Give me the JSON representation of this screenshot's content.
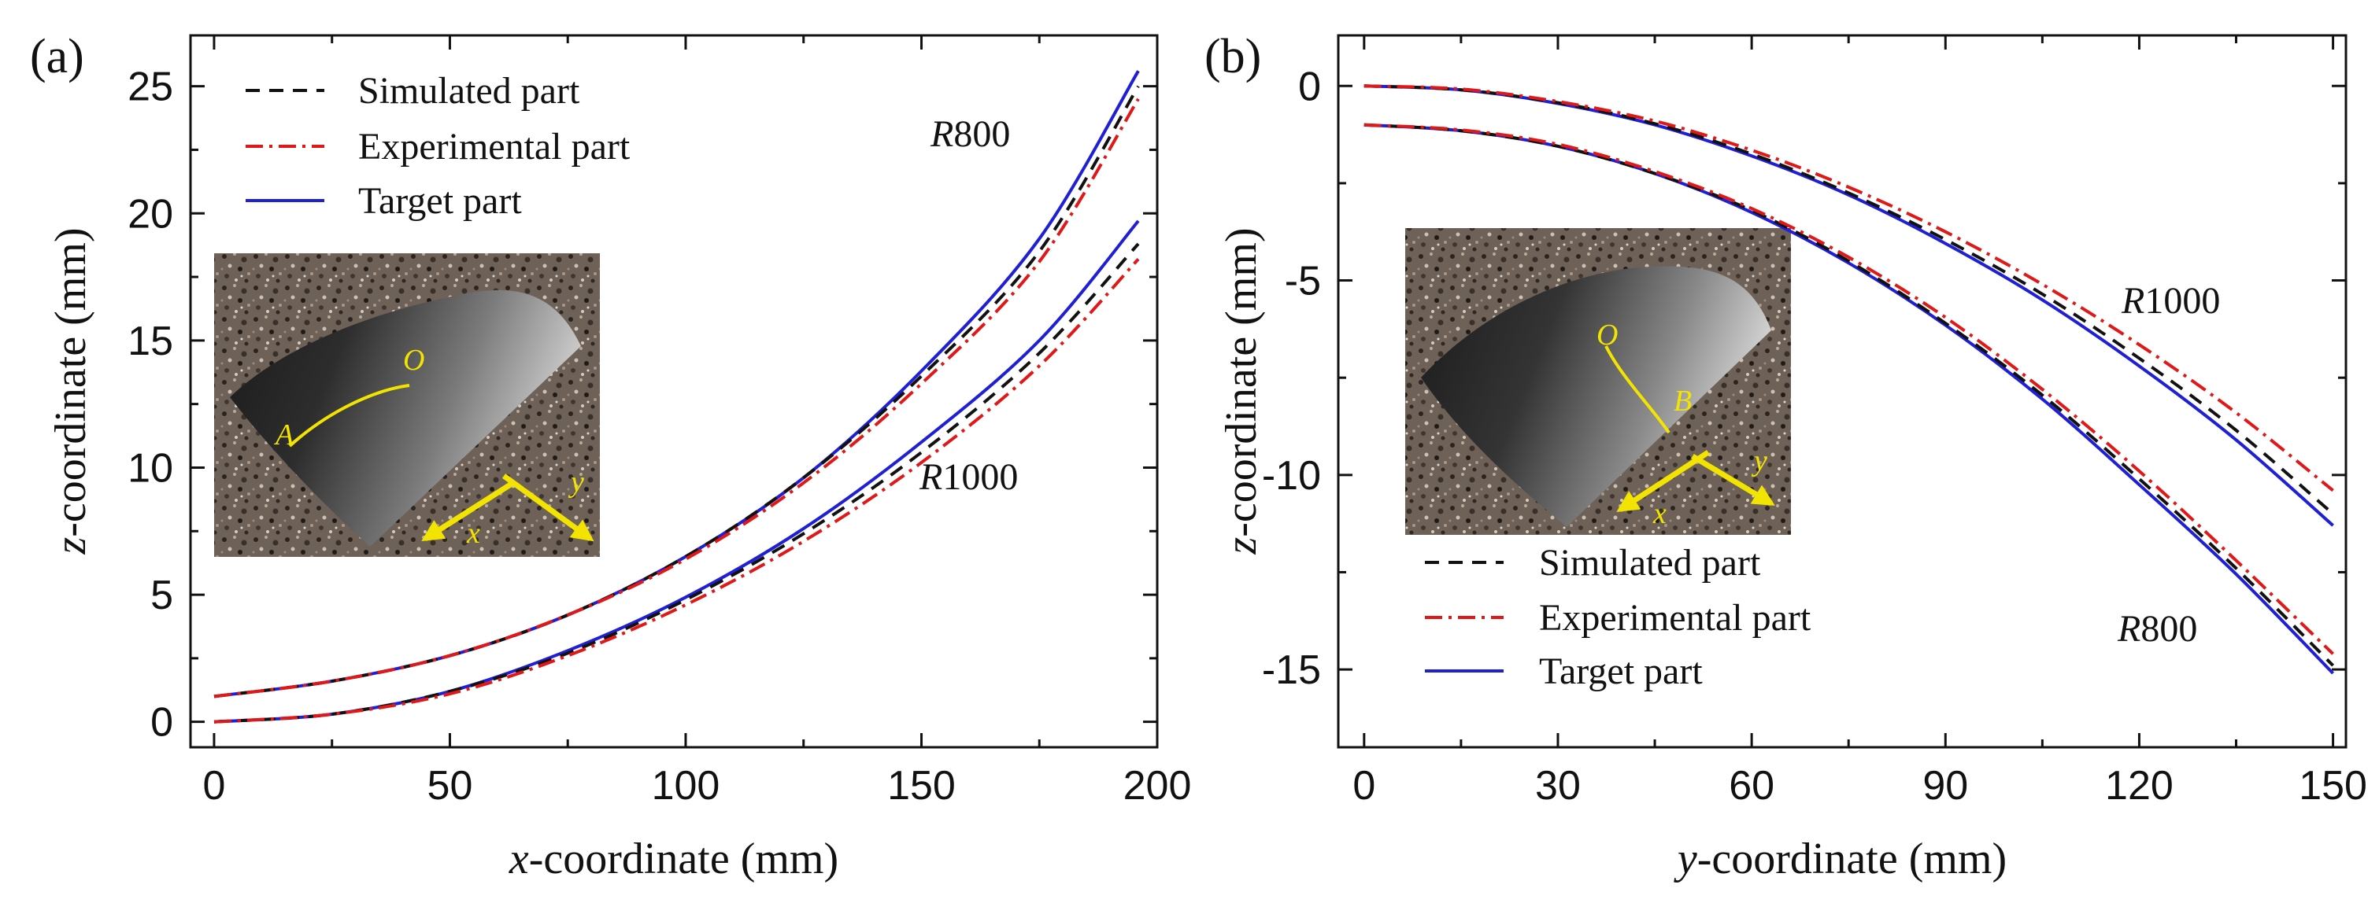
{
  "chart_data": [
    {
      "panel": "(a)",
      "type": "line",
      "xlabel_var": "x",
      "xlabel_rest": "-coordinate (mm)",
      "ylabel_var": "z",
      "ylabel_rest": "-coordinate (mm)",
      "xlim": [
        -5,
        200
      ],
      "ylim": [
        -1,
        27
      ],
      "xticks": [
        0,
        50,
        100,
        150,
        200
      ],
      "yticks": [
        0,
        5,
        10,
        15,
        20,
        25
      ],
      "legend": [
        "Simulated part",
        "Experimental part",
        "Target part"
      ],
      "series": [
        {
          "name": "Target part",
          "group": "R800",
          "style": "solid",
          "color": "#1f1fd6",
          "x": [
            0,
            25,
            50,
            75,
            100,
            125,
            150,
            175,
            196
          ],
          "y": [
            1.0,
            1.6,
            2.6,
            4.2,
            6.5,
            9.6,
            13.8,
            19.0,
            25.6
          ]
        },
        {
          "name": "Simulated part",
          "group": "R800",
          "style": "dashed",
          "color": "#111111",
          "x": [
            0,
            25,
            50,
            75,
            100,
            125,
            150,
            175,
            196
          ],
          "y": [
            1.0,
            1.6,
            2.6,
            4.2,
            6.5,
            9.6,
            13.6,
            18.5,
            25.0
          ]
        },
        {
          "name": "Experimental part",
          "group": "R800",
          "style": "dashdot",
          "color": "#e01818",
          "x": [
            0,
            25,
            50,
            75,
            100,
            125,
            150,
            175,
            196
          ],
          "y": [
            1.0,
            1.6,
            2.6,
            4.2,
            6.4,
            9.4,
            13.3,
            18.1,
            24.5
          ]
        },
        {
          "name": "Target part",
          "group": "R1000",
          "style": "solid",
          "color": "#1f1fd6",
          "x": [
            0,
            25,
            50,
            75,
            100,
            125,
            150,
            175,
            196
          ],
          "y": [
            0.0,
            0.3,
            1.2,
            2.8,
            4.9,
            7.6,
            11.0,
            15.0,
            19.7
          ]
        },
        {
          "name": "Simulated part",
          "group": "R1000",
          "style": "dashed",
          "color": "#111111",
          "x": [
            0,
            25,
            50,
            75,
            100,
            125,
            150,
            175,
            196
          ],
          "y": [
            0.0,
            0.3,
            1.2,
            2.7,
            4.8,
            7.4,
            10.6,
            14.5,
            18.8
          ]
        },
        {
          "name": "Experimental part",
          "group": "R1000",
          "style": "dashdot",
          "color": "#e01818",
          "x": [
            0,
            25,
            50,
            75,
            100,
            125,
            150,
            175,
            196
          ],
          "y": [
            0.0,
            0.3,
            1.1,
            2.6,
            4.6,
            7.1,
            10.2,
            14.0,
            18.2
          ]
        }
      ],
      "annotations": [
        {
          "var": "R",
          "text": "800"
        },
        {
          "var": "R",
          "text": "1000"
        }
      ],
      "inset": {
        "point_start": "A",
        "point_end": "O",
        "axis_1": "x",
        "axis_2": "y"
      }
    },
    {
      "panel": "(b)",
      "type": "line",
      "xlabel_var": "y",
      "xlabel_rest": "-coordinate (mm)",
      "ylabel_var": "z",
      "ylabel_rest": "-coordinate (mm)",
      "xlim": [
        -4,
        152
      ],
      "ylim": [
        -17,
        1.3
      ],
      "xticks": [
        0,
        30,
        60,
        90,
        120,
        150
      ],
      "yticks": [
        0,
        -5,
        -10,
        -15
      ],
      "legend": [
        "Simulated part",
        "Experimental part",
        "Target part"
      ],
      "series": [
        {
          "name": "Target part",
          "group": "R1000",
          "style": "solid",
          "color": "#1f1fd6",
          "x": [
            0,
            15,
            30,
            45,
            60,
            75,
            90,
            105,
            120,
            135,
            150
          ],
          "y": [
            0.0,
            -0.1,
            -0.45,
            -1.0,
            -1.8,
            -2.8,
            -4.05,
            -5.5,
            -7.2,
            -9.1,
            -11.3
          ]
        },
        {
          "name": "Simulated part",
          "group": "R1000",
          "style": "dashed",
          "color": "#111111",
          "x": [
            0,
            15,
            30,
            45,
            60,
            75,
            90,
            105,
            120,
            135,
            150
          ],
          "y": [
            0.0,
            -0.1,
            -0.43,
            -0.97,
            -1.75,
            -2.75,
            -3.95,
            -5.35,
            -7.0,
            -8.85,
            -11.0
          ]
        },
        {
          "name": "Experimental part",
          "group": "R1000",
          "style": "dashdot",
          "color": "#e01818",
          "x": [
            0,
            15,
            30,
            45,
            60,
            75,
            90,
            105,
            120,
            135,
            150
          ],
          "y": [
            0.0,
            -0.08,
            -0.4,
            -0.9,
            -1.65,
            -2.6,
            -3.75,
            -5.1,
            -6.65,
            -8.4,
            -10.4
          ]
        },
        {
          "name": "Target part",
          "group": "R800",
          "style": "solid",
          "color": "#1f1fd6",
          "x": [
            0,
            15,
            30,
            45,
            60,
            75,
            90,
            105,
            120,
            135,
            150
          ],
          "y": [
            -1.0,
            -1.15,
            -1.55,
            -2.25,
            -3.25,
            -4.55,
            -6.15,
            -8.05,
            -10.25,
            -12.55,
            -15.1
          ]
        },
        {
          "name": "Simulated part",
          "group": "R800",
          "style": "dashed",
          "color": "#111111",
          "x": [
            0,
            15,
            30,
            45,
            60,
            75,
            90,
            105,
            120,
            135,
            150
          ],
          "y": [
            -1.0,
            -1.15,
            -1.55,
            -2.25,
            -3.2,
            -4.5,
            -6.1,
            -7.95,
            -10.1,
            -12.4,
            -14.9
          ]
        },
        {
          "name": "Experimental part",
          "group": "R800",
          "style": "dashdot",
          "color": "#e01818",
          "x": [
            0,
            15,
            30,
            45,
            60,
            75,
            90,
            105,
            120,
            135,
            150
          ],
          "y": [
            -1.0,
            -1.13,
            -1.5,
            -2.2,
            -3.15,
            -4.4,
            -5.95,
            -7.8,
            -9.9,
            -12.2,
            -14.6
          ]
        }
      ],
      "annotations": [
        {
          "var": "R",
          "text": "1000"
        },
        {
          "var": "R",
          "text": "800"
        }
      ],
      "inset": {
        "point_start": "O",
        "point_end": "B",
        "axis_1": "x",
        "axis_2": "y"
      }
    }
  ]
}
